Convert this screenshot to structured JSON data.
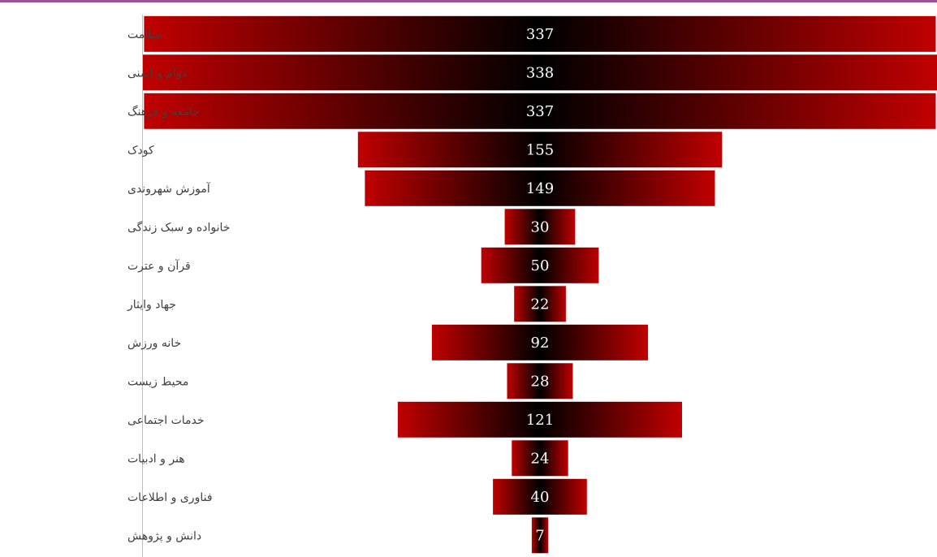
{
  "colors": {
    "bar_edge": "#c00000",
    "bar_center": "#000000",
    "top_border": "#9b4f96",
    "label": "#404040",
    "value_label": "#ffffff"
  },
  "chart_data": {
    "type": "bar",
    "orientation": "horizontal",
    "style": "funnel",
    "categories": [
      "سلامت",
      "دوام و ایمنی",
      "جامعه و فرهنگ",
      "کودک",
      "آموزش شهروندی",
      "خانواده و سبک زندگی",
      "قرآن و عترت",
      "جهاد وایثار",
      "خانه ورزش",
      "محیط زیست",
      "خدمات اجتماعی",
      "هنر و ادبیات",
      "فناوری و اطلاعات",
      "دانش و پژوهش"
    ],
    "values": [
      337,
      338,
      337,
      155,
      149,
      30,
      50,
      22,
      92,
      28,
      121,
      24,
      40,
      7
    ],
    "data_labels": true,
    "xlim": [
      0,
      338
    ],
    "legend": "none",
    "grid": false
  }
}
